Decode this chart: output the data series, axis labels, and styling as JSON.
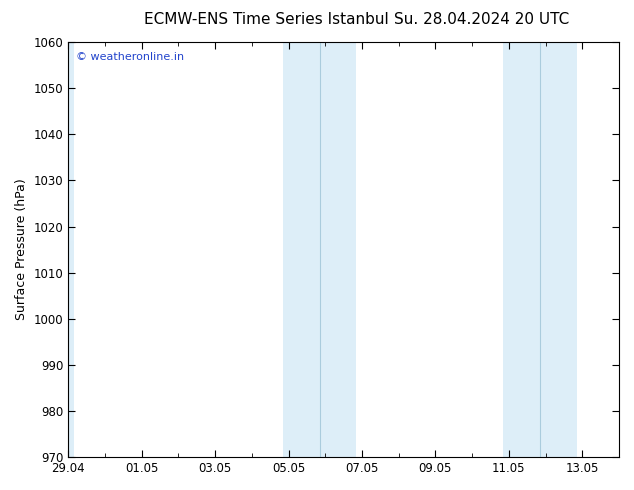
{
  "title_left": "ECMW-ENS Time Series Istanbul",
  "title_right": "Su. 28.04.2024 20 UTC",
  "ylabel": "Surface Pressure (hPa)",
  "ylim": [
    970,
    1060
  ],
  "yticks": [
    970,
    980,
    990,
    1000,
    1010,
    1020,
    1030,
    1040,
    1050,
    1060
  ],
  "xtick_labels": [
    "29.04",
    "01.05",
    "03.05",
    "05.05",
    "07.05",
    "09.05",
    "11.05",
    "13.05"
  ],
  "xtick_positions": [
    0,
    2,
    4,
    6,
    8,
    10,
    12,
    14
  ],
  "xlim": [
    0,
    15
  ],
  "shaded_bands": [
    {
      "x_start": -0.15,
      "x_end": 0.15
    },
    {
      "x_start": 5.85,
      "x_end": 6.85
    },
    {
      "x_start": 11.85,
      "x_end": 12.85
    }
  ],
  "shaded_color": "#ddeef8",
  "shaded_line_color": "#aaccdd",
  "watermark_text": "© weatheronline.in",
  "watermark_color": "#2244cc",
  "background_color": "#ffffff",
  "plot_bg_color": "#ffffff",
  "border_color": "#000000",
  "title_fontsize": 11,
  "label_fontsize": 9,
  "tick_fontsize": 8.5
}
